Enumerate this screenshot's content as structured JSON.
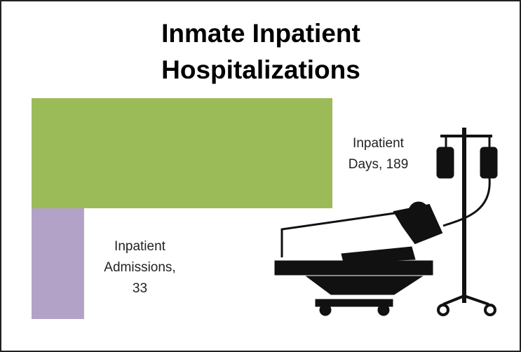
{
  "chart_data": {
    "type": "bar",
    "title": "Inmate Inpatient Hospitalizations",
    "categories": [
      "Inpatient Days,",
      "Inpatient Admissions,"
    ],
    "values": [
      189,
      33
    ],
    "colors": [
      "#9bbb59",
      "#b3a2c7"
    ]
  }
}
